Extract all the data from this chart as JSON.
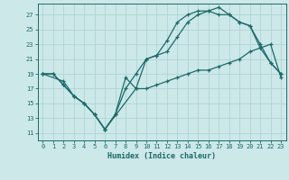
{
  "xlabel": "Humidex (Indice chaleur)",
  "bg_color": "#cce8e8",
  "line_color": "#1a6b6b",
  "xlim": [
    -0.5,
    23.5
  ],
  "ylim": [
    10.0,
    28.5
  ],
  "xticks": [
    0,
    1,
    2,
    3,
    4,
    5,
    6,
    7,
    8,
    9,
    10,
    11,
    12,
    13,
    14,
    15,
    16,
    17,
    18,
    19,
    20,
    21,
    22,
    23
  ],
  "yticks": [
    11,
    13,
    15,
    17,
    19,
    21,
    23,
    25,
    27
  ],
  "line1_x": [
    0,
    1,
    2,
    3,
    4,
    5,
    6,
    7,
    8,
    9,
    10,
    11,
    12,
    13,
    14,
    15,
    16,
    17,
    18,
    19,
    20,
    21,
    22,
    23
  ],
  "line1_y": [
    19,
    19,
    17.5,
    16,
    15,
    13.5,
    11.5,
    13.5,
    18.5,
    17,
    17,
    17.5,
    18,
    18.5,
    19,
    19.5,
    19.5,
    20,
    20.5,
    21,
    22,
    22.5,
    23,
    18.5
  ],
  "line2_x": [
    0,
    1,
    2,
    3,
    4,
    5,
    6,
    7,
    8,
    9,
    10,
    11,
    12,
    13,
    14,
    15,
    16,
    17,
    18,
    19,
    20,
    21,
    22,
    23
  ],
  "line2_y": [
    19,
    19,
    17.5,
    16,
    15,
    13.5,
    11.5,
    13.5,
    17,
    19,
    21,
    21.5,
    23.5,
    26,
    27,
    27.5,
    27.5,
    28,
    27,
    26,
    25.5,
    23,
    20.5,
    19
  ],
  "line3_x": [
    0,
    2,
    3,
    4,
    5,
    6,
    9,
    10,
    11,
    12,
    13,
    14,
    15,
    16,
    17,
    18,
    19,
    20,
    21,
    22,
    23
  ],
  "line3_y": [
    19,
    18,
    16,
    15,
    13.5,
    11.5,
    17,
    21,
    21.5,
    22,
    24,
    26,
    27,
    27.5,
    27,
    27,
    26,
    25.5,
    22.5,
    20.5,
    19
  ],
  "grid_color": "#b0d4d4",
  "spine_color": "#1a6b6b"
}
